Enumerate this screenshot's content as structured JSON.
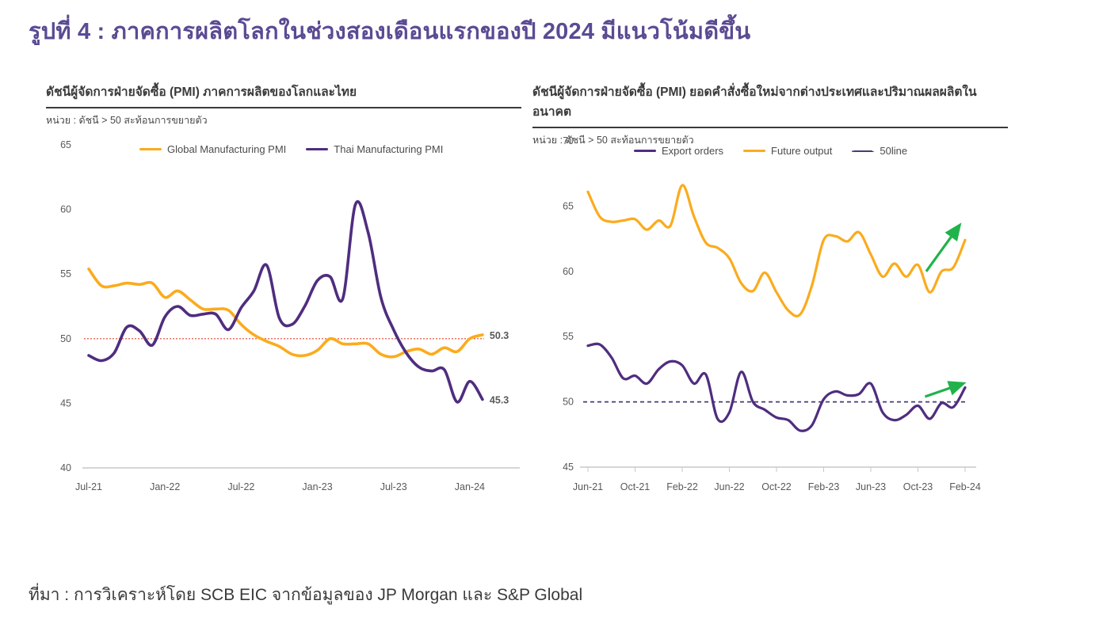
{
  "page": {
    "title": "รูปที่ 4 : ภาคการผลิตโลกในช่วงสองเดือนแรกของปี 2024 มีแนวโน้มดีขึ้น",
    "title_color": "#5B4A93",
    "source": "ที่มา : การวิเคราะห์โดย SCB EIC จากข้อมูลของ JP Morgan และ S&P Global"
  },
  "chart_data": [
    {
      "type": "line",
      "title": "ดัชนีผู้จัดการฝ่ายจัดซื้อ (PMI) ภาคการผลิตของโลกและไทย",
      "unit_label": "หน่วย : ดัชนี > 50 สะท้อนการขยายตัว",
      "x_start": "Jul-21",
      "x_end": "Feb-24",
      "xtick_labels": [
        "Jul-21",
        "Jan-22",
        "Jul-22",
        "Jan-23",
        "Jul-23",
        "Jan-24"
      ],
      "ylim": [
        40,
        65
      ],
      "yticks": [
        40,
        45,
        50,
        55,
        60,
        65
      ],
      "grid": false,
      "legend_position": "top",
      "legend": [
        {
          "label": "Global Manufacturing PMI",
          "color": "#FBAB1D",
          "style": "solid"
        },
        {
          "label": "Thai Manufacturing PMI",
          "color": "#4F2D7F",
          "style": "solid"
        }
      ],
      "series": [
        {
          "name": "Global Manufacturing PMI",
          "color": "#FBAB1D",
          "values": [
            55.4,
            54.1,
            54.1,
            54.3,
            54.2,
            54.3,
            53.2,
            53.7,
            53.0,
            52.3,
            52.3,
            52.2,
            51.1,
            50.3,
            49.8,
            49.4,
            48.8,
            48.7,
            49.1,
            50.0,
            49.6,
            49.6,
            49.6,
            48.8,
            48.6,
            49.0,
            49.2,
            48.8,
            49.3,
            49.0,
            50.0,
            50.3
          ]
        },
        {
          "name": "Thai Manufacturing PMI",
          "color": "#4F2D7F",
          "values": [
            48.7,
            48.3,
            48.9,
            50.9,
            50.6,
            49.5,
            51.7,
            52.5,
            51.8,
            51.9,
            51.9,
            50.7,
            52.4,
            53.7,
            55.7,
            51.6,
            51.1,
            52.5,
            54.5,
            54.8,
            53.1,
            60.4,
            58.2,
            53.2,
            50.7,
            48.9,
            47.8,
            47.5,
            47.6,
            45.1,
            46.7,
            45.3
          ]
        }
      ],
      "reference_line": {
        "value": 50,
        "color": "#E2432E",
        "style": "dotted"
      },
      "end_labels": [
        {
          "text": "50.3",
          "value": 50.3,
          "series": 0
        },
        {
          "text": "45.3",
          "value": 45.3,
          "series": 1
        }
      ]
    },
    {
      "type": "line",
      "title": "ดัชนีผู้จัดการฝ่ายจัดซื้อ (PMI) ยอดคำสั่งซื้อใหม่จากต่างประเทศและปริมาณผลผลิตในอนาคต",
      "unit_label": "หน่วย : ดัชนี > 50 สะท้อนการขยายตัว",
      "x_start": "Jun-21",
      "x_end": "Feb-24",
      "xtick_labels": [
        "Jun-21",
        "Oct-21",
        "Feb-22",
        "Jun-22",
        "Oct-22",
        "Feb-23",
        "Jun-23",
        "Oct-23",
        "Feb-24"
      ],
      "ylim": [
        45,
        70
      ],
      "yticks": [
        45,
        50,
        55,
        60,
        65,
        70
      ],
      "grid": false,
      "legend_position": "top",
      "legend": [
        {
          "label": "Export orders",
          "color": "#4F2D7F",
          "style": "solid"
        },
        {
          "label": "Future output",
          "color": "#FBAB1D",
          "style": "solid"
        },
        {
          "label": "50line",
          "color": "#453C78",
          "style": "dashed"
        }
      ],
      "series": [
        {
          "name": "Export orders",
          "color": "#4F2D7F",
          "values": [
            54.3,
            54.4,
            53.4,
            51.8,
            52.0,
            51.4,
            52.5,
            53.1,
            52.8,
            51.4,
            52.1,
            48.7,
            49.2,
            52.3,
            50.0,
            49.4,
            48.8,
            48.6,
            47.8,
            48.2,
            50.2,
            50.8,
            50.5,
            50.6,
            51.4,
            49.2,
            48.6,
            49.0,
            49.7,
            48.7,
            49.9,
            49.6,
            51.1
          ]
        },
        {
          "name": "Future output",
          "color": "#FBAB1D",
          "values": [
            66.1,
            64.2,
            63.8,
            63.9,
            64.0,
            63.2,
            63.9,
            63.5,
            66.6,
            64.2,
            62.2,
            61.8,
            61.0,
            59.1,
            58.5,
            59.9,
            58.4,
            57.0,
            56.7,
            58.9,
            62.4,
            62.7,
            62.3,
            63.0,
            61.3,
            59.6,
            60.6,
            59.6,
            60.5,
            58.4,
            60.0,
            60.3,
            62.4
          ]
        }
      ],
      "reference_line": {
        "value": 50,
        "color": "#453C78",
        "style": "dashed"
      },
      "annotations": [
        {
          "type": "arrow",
          "color": "#21B24C",
          "from_month": 28.7,
          "from_value": 60.0,
          "to_month": 31.5,
          "to_value": 63.5
        },
        {
          "type": "arrow",
          "color": "#21B24C",
          "from_month": 28.6,
          "from_value": 50.4,
          "to_month": 31.8,
          "to_value": 51.4
        }
      ]
    }
  ]
}
